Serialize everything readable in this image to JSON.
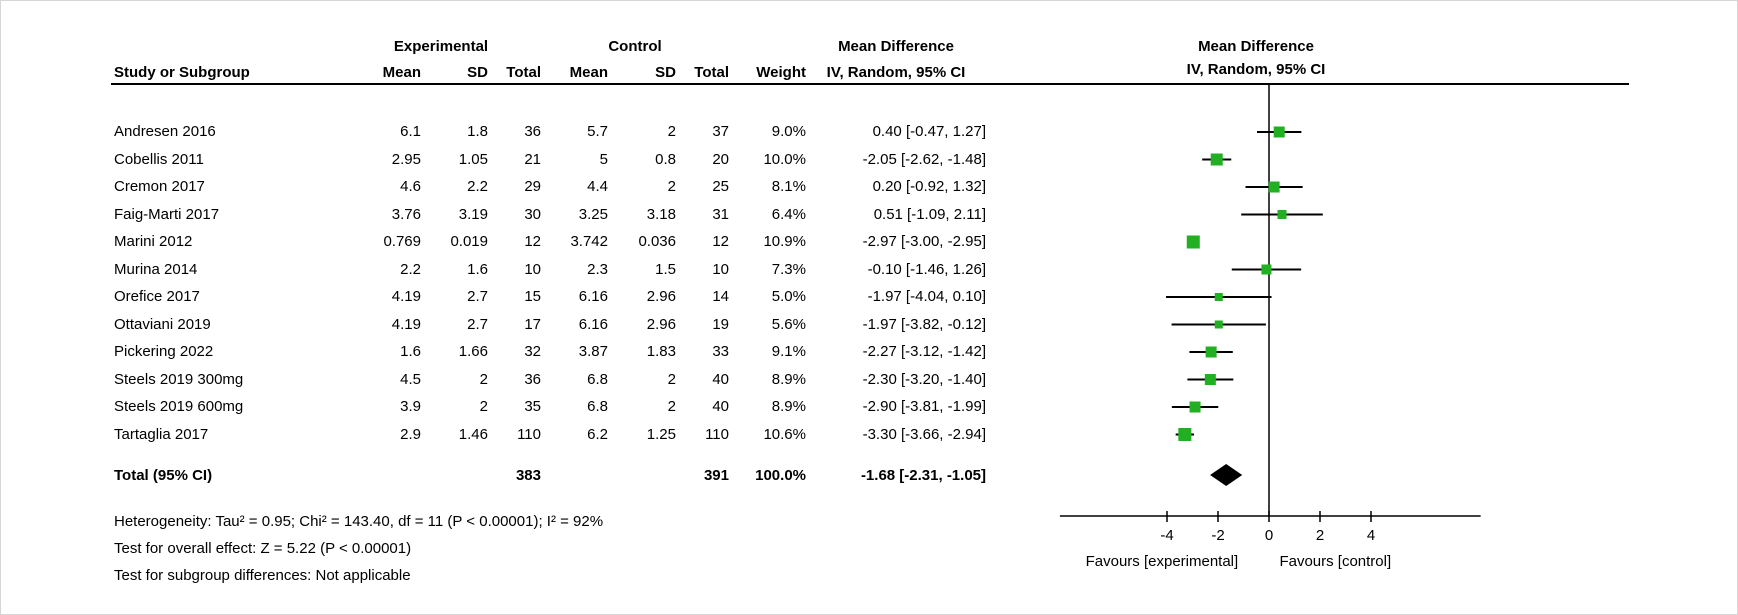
{
  "table": {
    "group_headers": {
      "experimental": "Experimental",
      "control": "Control",
      "mean_difference_left": "Mean Difference",
      "mean_difference_right": "Mean Difference"
    },
    "column_headers": {
      "study": "Study or Subgroup",
      "exp_mean": "Mean",
      "exp_sd": "SD",
      "exp_total": "Total",
      "ctrl_mean": "Mean",
      "ctrl_sd": "SD",
      "ctrl_total": "Total",
      "weight": "Weight",
      "md_ci": "IV, Random, 95% CI",
      "md_ci_plot": "IV, Random, 95% CI"
    },
    "rows": [
      {
        "study": "Andresen 2016",
        "cells": [
          "6.1",
          "1.8",
          "36",
          "5.7",
          "2",
          "37",
          "9.0%",
          "0.40 [-0.47, 1.27]"
        ]
      },
      {
        "study": "Cobellis 2011",
        "cells": [
          "2.95",
          "1.05",
          "21",
          "5",
          "0.8",
          "20",
          "10.0%",
          "-2.05 [-2.62, -1.48]"
        ]
      },
      {
        "study": "Cremon 2017",
        "cells": [
          "4.6",
          "2.2",
          "29",
          "4.4",
          "2",
          "25",
          "8.1%",
          "0.20 [-0.92, 1.32]"
        ]
      },
      {
        "study": "Faig-Marti 2017",
        "cells": [
          "3.76",
          "3.19",
          "30",
          "3.25",
          "3.18",
          "31",
          "6.4%",
          "0.51 [-1.09, 2.11]"
        ]
      },
      {
        "study": "Marini 2012",
        "cells": [
          "0.769",
          "0.019",
          "12",
          "3.742",
          "0.036",
          "12",
          "10.9%",
          "-2.97 [-3.00, -2.95]"
        ]
      },
      {
        "study": "Murina 2014",
        "cells": [
          "2.2",
          "1.6",
          "10",
          "2.3",
          "1.5",
          "10",
          "7.3%",
          "-0.10 [-1.46, 1.26]"
        ]
      },
      {
        "study": "Orefice 2017",
        "cells": [
          "4.19",
          "2.7",
          "15",
          "6.16",
          "2.96",
          "14",
          "5.0%",
          "-1.97 [-4.04, 0.10]"
        ]
      },
      {
        "study": "Ottaviani 2019",
        "cells": [
          "4.19",
          "2.7",
          "17",
          "6.16",
          "2.96",
          "19",
          "5.6%",
          "-1.97 [-3.82, -0.12]"
        ]
      },
      {
        "study": "Pickering 2022",
        "cells": [
          "1.6",
          "1.66",
          "32",
          "3.87",
          "1.83",
          "33",
          "9.1%",
          "-2.27 [-3.12, -1.42]"
        ]
      },
      {
        "study": "Steels 2019 300mg",
        "cells": [
          "4.5",
          "2",
          "36",
          "6.8",
          "2",
          "40",
          "8.9%",
          "-2.30 [-3.20, -1.40]"
        ]
      },
      {
        "study": "Steels 2019 600mg",
        "cells": [
          "3.9",
          "2",
          "35",
          "6.8",
          "2",
          "40",
          "8.9%",
          "-2.90 [-3.81, -1.99]"
        ]
      },
      {
        "study": "Tartaglia 2017",
        "cells": [
          "2.9",
          "1.46",
          "110",
          "6.2",
          "1.25",
          "110",
          "10.6%",
          "-3.30 [-3.66, -2.94]"
        ]
      }
    ],
    "total_row": {
      "label": "Total (95% CI)",
      "exp_total": "383",
      "ctrl_total": "391",
      "weight": "100.0%",
      "md_ci": "-1.68 [-2.31, -1.05]"
    },
    "footer_lines": [
      "Heterogeneity: Tau² = 0.95; Chi² = 143.40, df = 11 (P < 0.00001); I² = 92%",
      "Test for overall effect: Z = 5.22 (P < 0.00001)",
      "Test for subgroup differences: Not applicable"
    ]
  },
  "chart_data": {
    "type": "scatter",
    "subtype": "forest-plot-meta-analysis",
    "effect_measure": "Mean Difference",
    "model": "IV, Random, 95% CI",
    "x_ticks": [
      -4,
      -2,
      0,
      2,
      4
    ],
    "xlim": [
      -8.2,
      8.3
    ],
    "studies": [
      {
        "name": "Andresen 2016",
        "exp_mean": 6.1,
        "exp_sd": 1.8,
        "exp_total": 36,
        "ctrl_mean": 5.7,
        "ctrl_sd": 2,
        "ctrl_total": 37,
        "weight_pct": 9.0,
        "md": 0.4,
        "ci_low": -0.47,
        "ci_high": 1.27
      },
      {
        "name": "Cobellis 2011",
        "exp_mean": 2.95,
        "exp_sd": 1.05,
        "exp_total": 21,
        "ctrl_mean": 5,
        "ctrl_sd": 0.8,
        "ctrl_total": 20,
        "weight_pct": 10.0,
        "md": -2.05,
        "ci_low": -2.62,
        "ci_high": -1.48
      },
      {
        "name": "Cremon 2017",
        "exp_mean": 4.6,
        "exp_sd": 2.2,
        "exp_total": 29,
        "ctrl_mean": 4.4,
        "ctrl_sd": 2,
        "ctrl_total": 25,
        "weight_pct": 8.1,
        "md": 0.2,
        "ci_low": -0.92,
        "ci_high": 1.32
      },
      {
        "name": "Faig-Marti 2017",
        "exp_mean": 3.76,
        "exp_sd": 3.19,
        "exp_total": 30,
        "ctrl_mean": 3.25,
        "ctrl_sd": 3.18,
        "ctrl_total": 31,
        "weight_pct": 6.4,
        "md": 0.51,
        "ci_low": -1.09,
        "ci_high": 2.11
      },
      {
        "name": "Marini 2012",
        "exp_mean": 0.769,
        "exp_sd": 0.019,
        "exp_total": 12,
        "ctrl_mean": 3.742,
        "ctrl_sd": 0.036,
        "ctrl_total": 12,
        "weight_pct": 10.9,
        "md": -2.97,
        "ci_low": -3.0,
        "ci_high": -2.95
      },
      {
        "name": "Murina 2014",
        "exp_mean": 2.2,
        "exp_sd": 1.6,
        "exp_total": 10,
        "ctrl_mean": 2.3,
        "ctrl_sd": 1.5,
        "ctrl_total": 10,
        "weight_pct": 7.3,
        "md": -0.1,
        "ci_low": -1.46,
        "ci_high": 1.26
      },
      {
        "name": "Orefice 2017",
        "exp_mean": 4.19,
        "exp_sd": 2.7,
        "exp_total": 15,
        "ctrl_mean": 6.16,
        "ctrl_sd": 2.96,
        "ctrl_total": 14,
        "weight_pct": 5.0,
        "md": -1.97,
        "ci_low": -4.04,
        "ci_high": 0.1
      },
      {
        "name": "Ottaviani 2019",
        "exp_mean": 4.19,
        "exp_sd": 2.7,
        "exp_total": 17,
        "ctrl_mean": 6.16,
        "ctrl_sd": 2.96,
        "ctrl_total": 19,
        "weight_pct": 5.6,
        "md": -1.97,
        "ci_low": -3.82,
        "ci_high": -0.12
      },
      {
        "name": "Pickering 2022",
        "exp_mean": 1.6,
        "exp_sd": 1.66,
        "exp_total": 32,
        "ctrl_mean": 3.87,
        "ctrl_sd": 1.83,
        "ctrl_total": 33,
        "weight_pct": 9.1,
        "md": -2.27,
        "ci_low": -3.12,
        "ci_high": -1.42
      },
      {
        "name": "Steels 2019 300mg",
        "exp_mean": 4.5,
        "exp_sd": 2,
        "exp_total": 36,
        "ctrl_mean": 6.8,
        "ctrl_sd": 2,
        "ctrl_total": 40,
        "weight_pct": 8.9,
        "md": -2.3,
        "ci_low": -3.2,
        "ci_high": -1.4
      },
      {
        "name": "Steels 2019 600mg",
        "exp_mean": 3.9,
        "exp_sd": 2,
        "exp_total": 35,
        "ctrl_mean": 6.8,
        "ctrl_sd": 2,
        "ctrl_total": 40,
        "weight_pct": 8.9,
        "md": -2.9,
        "ci_low": -3.81,
        "ci_high": -1.99
      },
      {
        "name": "Tartaglia 2017",
        "exp_mean": 2.9,
        "exp_sd": 1.46,
        "exp_total": 110,
        "ctrl_mean": 6.2,
        "ctrl_sd": 1.25,
        "ctrl_total": 110,
        "weight_pct": 10.6,
        "md": -3.3,
        "ci_low": -3.66,
        "ci_high": -2.94
      }
    ],
    "total": {
      "exp_total": 383,
      "ctrl_total": 391,
      "weight_pct": 100.0,
      "md": -1.68,
      "ci_low": -2.31,
      "ci_high": -1.05
    },
    "heterogeneity": "Tau² = 0.95; Chi² = 143.40, df = 11 (P < 0.00001); I² = 92%",
    "test_overall_effect": "Z = 5.22 (P < 0.00001)",
    "test_subgroup_differences": "Not applicable",
    "favours_left": "Favours [experimental]",
    "favours_right": "Favours [control]",
    "legend_position": "none",
    "grid": false,
    "colors": {
      "marker_green": "#21b021",
      "diamond_black": "#000000",
      "line_black": "#000000"
    }
  }
}
